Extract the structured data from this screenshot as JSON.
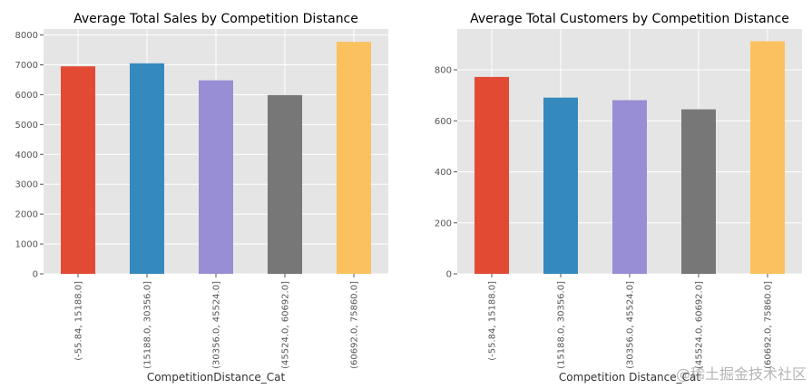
{
  "chart_data": [
    {
      "type": "bar",
      "title": "Average Total Sales by Competition Distance",
      "xlabel": "CompetitionDistance_Cat",
      "ylabel": "",
      "categories": [
        "(-55.84, 15188.0]",
        "(15188.0, 30356.0]",
        "(30356.0, 45524.0]",
        "(45524.0, 60692.0]",
        "(60692.0, 75860.0]"
      ],
      "values": [
        6950,
        7050,
        6480,
        5990,
        7770
      ],
      "ylim": [
        0,
        8200
      ],
      "yticks": [
        0,
        1000,
        2000,
        3000,
        4000,
        5000,
        6000,
        7000,
        8000
      ],
      "grid": true
    },
    {
      "type": "bar",
      "title": "Average Total Customers by Competition Distance",
      "xlabel": "Competition Distance_Cat",
      "ylabel": "",
      "categories": [
        "(-55.84, 15188.0]",
        "(15188.0, 30356.0]",
        "(30356.0, 45524.0]",
        "(45524.0, 60692.0]",
        "(60692.0, 75860.0]"
      ],
      "values": [
        772,
        691,
        681,
        645,
        912
      ],
      "ylim": [
        0,
        960
      ],
      "yticks": [
        0,
        200,
        400,
        600,
        800
      ],
      "grid": true
    }
  ],
  "colors": [
    "#E24A33",
    "#348ABD",
    "#988ED5",
    "#777777",
    "#FBC15E"
  ],
  "plot_background": "#E5E5E5",
  "grid_color": "#ffffff",
  "watermark": "@稀土掘金技术社区"
}
